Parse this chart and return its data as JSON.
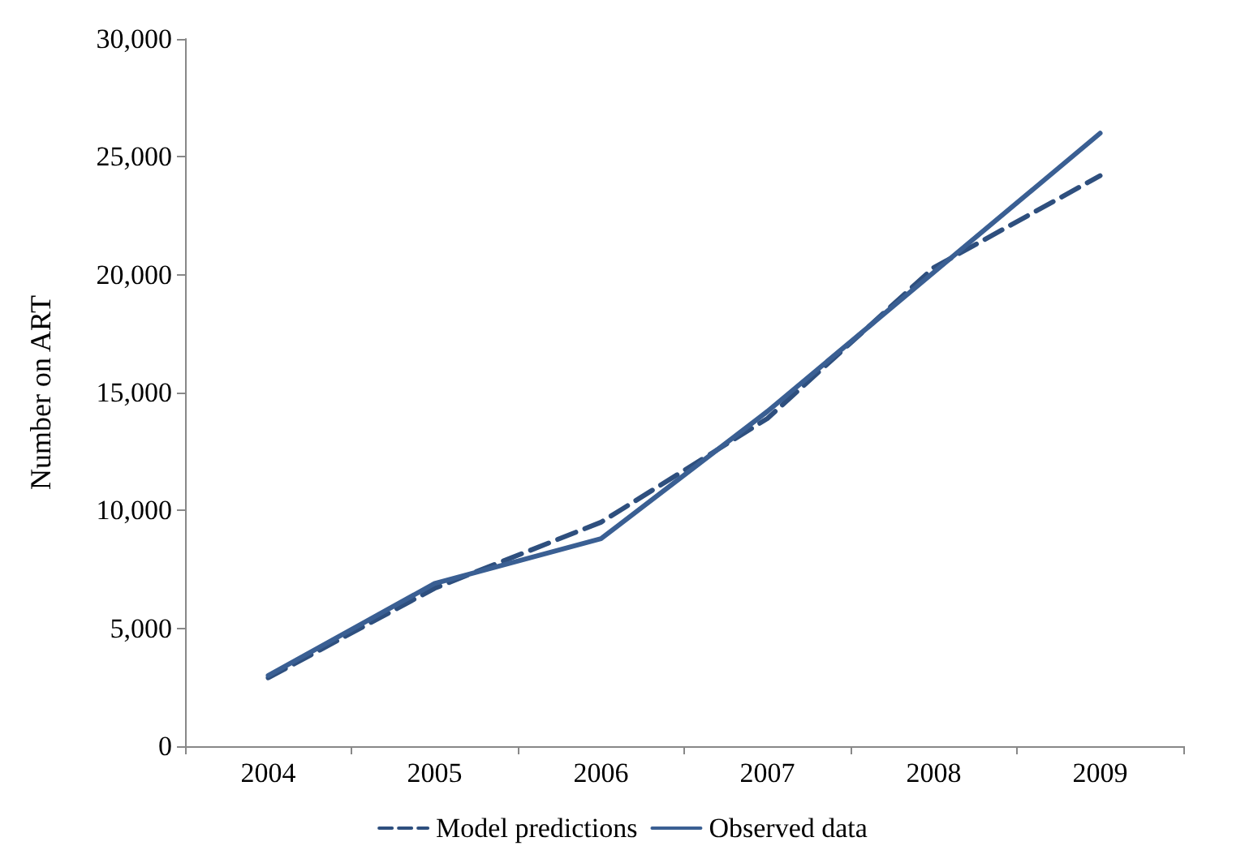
{
  "chart_data": {
    "type": "line",
    "ylabel": "Number on ART",
    "categories": [
      "2004",
      "2005",
      "2006",
      "2007",
      "2008",
      "2009"
    ],
    "series": [
      {
        "name": "Model predictions",
        "color": "#2e4f7e",
        "line_style": "dashed",
        "values": [
          2900,
          6700,
          9500,
          13900,
          20300,
          24200
        ]
      },
      {
        "name": "Observed data",
        "color": "#3a5f93",
        "line_style": "solid",
        "values": [
          3000,
          6900,
          8800,
          14200,
          20100,
          26000
        ]
      }
    ],
    "ylim": [
      0,
      30000
    ],
    "yticks": [
      0,
      {
        "value": 5000,
        "label": "5,000"
      },
      {
        "value": 10000,
        "label": "10,000"
      },
      {
        "value": 15000,
        "label": "15,000"
      },
      {
        "value": 20000,
        "label": "20,000"
      },
      {
        "value": 25000,
        "label": "25,000"
      },
      {
        "value": 30000,
        "label": "30,000"
      }
    ],
    "grid": false,
    "legend": "bottom",
    "marker": "none"
  }
}
